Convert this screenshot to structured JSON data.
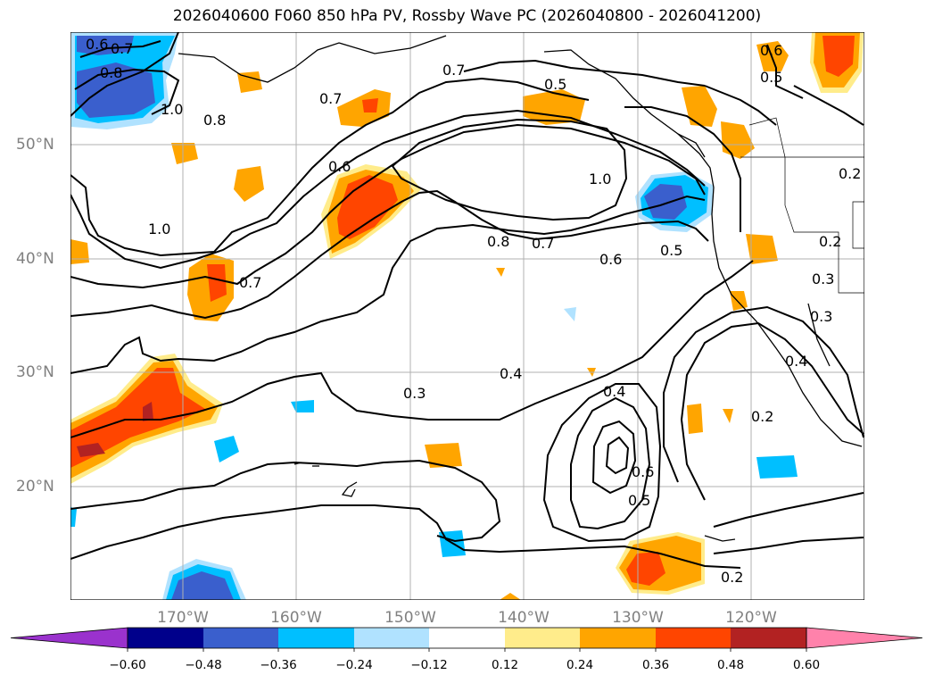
{
  "title": "2026040600 F060 850 hPa PV, Rossby Wave PC (2026040800 - 2026041200)",
  "latitude_labels": [
    "50°N",
    "40°N",
    "30°N",
    "20°N"
  ],
  "longitude_labels": [
    "170°W",
    "160°W",
    "150°W",
    "140°W",
    "130°W",
    "120°W"
  ],
  "contour_labels": [
    "0.6",
    "0.7",
    "0.8",
    "1.0",
    "0.8",
    "0.7",
    "0.6",
    "1.0",
    "0.7",
    "0.7",
    "0.5",
    "1.0",
    "0.8",
    "0.7",
    "0.6",
    "0.5",
    "0.6",
    "0.5",
    "0.4",
    "0.3",
    "0.4",
    "0.6",
    "0.5",
    "0.2",
    "0.2",
    "0.3",
    "0.4",
    "0.2",
    "0.2",
    "0.3"
  ],
  "colorbar": {
    "tick_labels": [
      "−0.60",
      "−0.48",
      "−0.36",
      "−0.24",
      "−0.12",
      "0.12",
      "0.24",
      "0.36",
      "0.48",
      "0.60"
    ],
    "colors": [
      "#9a32cd",
      "#00008b",
      "#3a5fcd",
      "#00bfff",
      "#b0e2ff",
      "#ffffff",
      "#ffec8b",
      "#ffa500",
      "#ff4500",
      "#b22222",
      "#ff82ab"
    ]
  },
  "fill_colors": {
    "neg_light": "#b0e2ff",
    "neg_mid": "#00bfff",
    "neg_dark": "#3a5fcd",
    "pos_light": "#ffec8b",
    "pos_mid": "#ffa500",
    "pos_dark": "#ff4500",
    "pos_darker": "#b22222"
  }
}
